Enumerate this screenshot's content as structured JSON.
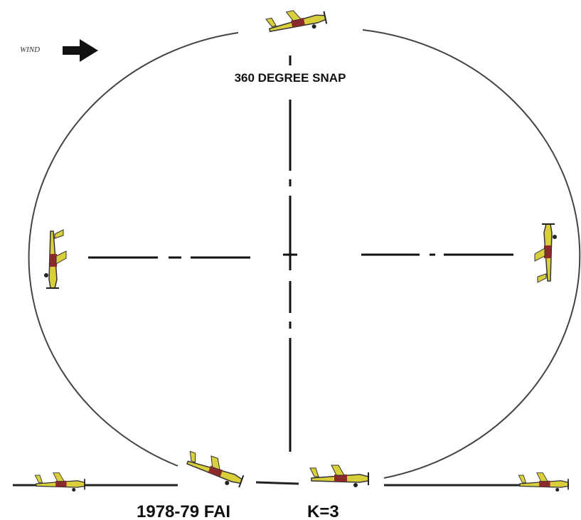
{
  "wind_label": "WIND",
  "maneuver_label": "360 DEGREE SNAP",
  "caption": {
    "schedule": "1978-79 FAI",
    "k_factor": "K=3"
  }
}
